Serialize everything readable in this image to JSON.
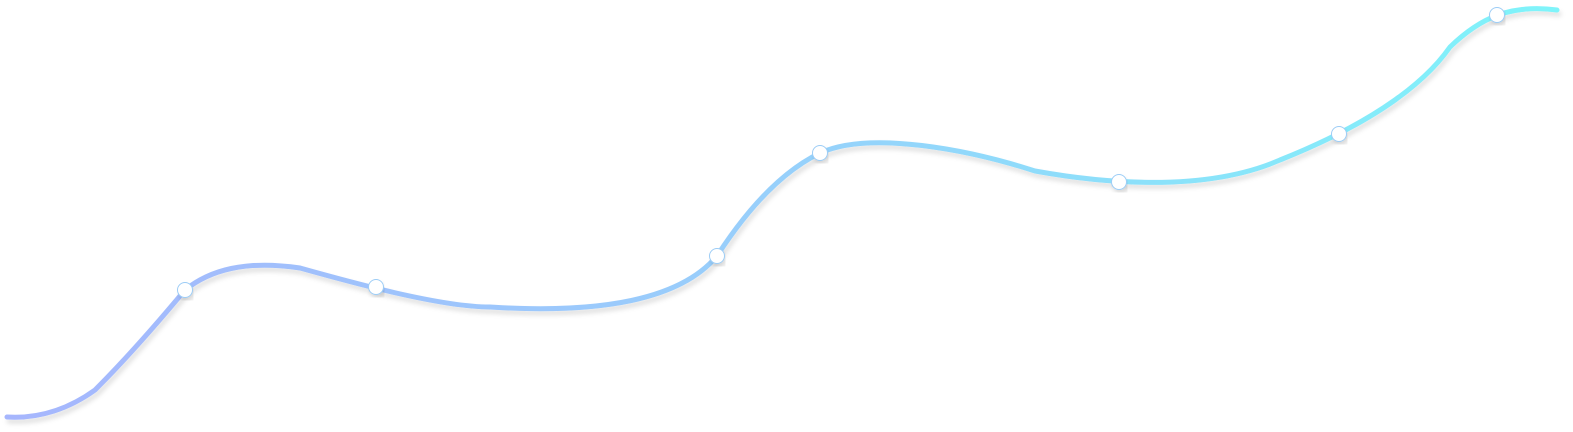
{
  "curve": {
    "gradient_start_color": "#a6b6fd",
    "gradient_mid_color": "#97d0fb",
    "gradient_end_color": "#7ff4fa",
    "marker_fill": "#ffffff",
    "marker_stroke": "#9dcdf6",
    "marker_count": 7
  }
}
